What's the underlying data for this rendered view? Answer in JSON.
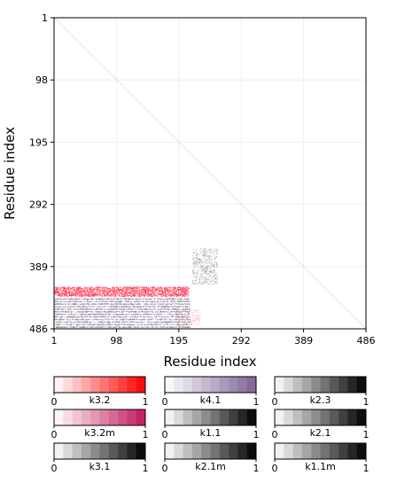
{
  "chart_data": {
    "type": "scatter",
    "title": "",
    "xlabel": "Residue index",
    "ylabel": "Residue index",
    "xlim": [
      1,
      486
    ],
    "ylim": [
      486,
      1
    ],
    "xticks": [
      "1",
      "98",
      "195",
      "292",
      "389",
      "486"
    ],
    "yticks": [
      "1",
      "98",
      "195",
      "292",
      "389",
      "486"
    ],
    "tick_values": [
      1,
      98,
      195,
      292,
      389,
      486
    ],
    "grid": true,
    "diagonal_line": true,
    "regions": [
      {
        "name": "red band",
        "color": "#ff2040",
        "x": [
          1,
          210
        ],
        "y": [
          420,
          435
        ],
        "density": 0.55,
        "point_count": 2200
      },
      {
        "name": "red band lower",
        "color": "#ff3050",
        "x": [
          190,
          228
        ],
        "y": [
          455,
          480
        ],
        "density": 0.25,
        "point_count": 180
      },
      {
        "name": "purple block",
        "color": "#7a6a8c",
        "x": [
          1,
          212
        ],
        "y": [
          438,
          486
        ],
        "density": 0.45,
        "point_count": 4200
      },
      {
        "name": "gray cluster",
        "color": "#555555",
        "x": [
          216,
          255
        ],
        "y": [
          360,
          416
        ],
        "density": 0.35,
        "point_count": 520
      }
    ],
    "colorbars": [
      {
        "label": "k3.2",
        "start_color": "#ffffff",
        "end_color": "#ff0000",
        "ticks": [
          "0",
          "1"
        ]
      },
      {
        "label": "k4.1",
        "start_color": "#ffffff",
        "end_color": "#7d6296",
        "ticks": [
          "0",
          "1"
        ]
      },
      {
        "label": "k2.3",
        "start_color": "#ffffff",
        "end_color": "#000000",
        "ticks": [
          "0",
          "1"
        ]
      },
      {
        "label": "k3.2m",
        "start_color": "#ffffff",
        "end_color": "#c0185a",
        "ticks": [
          "0",
          "1"
        ]
      },
      {
        "label": "k1.1",
        "start_color": "#ffffff",
        "end_color": "#000000",
        "ticks": [
          "0",
          "1"
        ]
      },
      {
        "label": "k2.1",
        "start_color": "#ffffff",
        "end_color": "#000000",
        "ticks": [
          "0",
          "1"
        ]
      },
      {
        "label": "k3.1",
        "start_color": "#ffffff",
        "end_color": "#000000",
        "ticks": [
          "0",
          "1"
        ]
      },
      {
        "label": "k2.1m",
        "start_color": "#ffffff",
        "end_color": "#000000",
        "ticks": [
          "0",
          "1"
        ]
      },
      {
        "label": "k1.1m",
        "start_color": "#ffffff",
        "end_color": "#000000",
        "ticks": [
          "0",
          "1"
        ]
      }
    ]
  }
}
